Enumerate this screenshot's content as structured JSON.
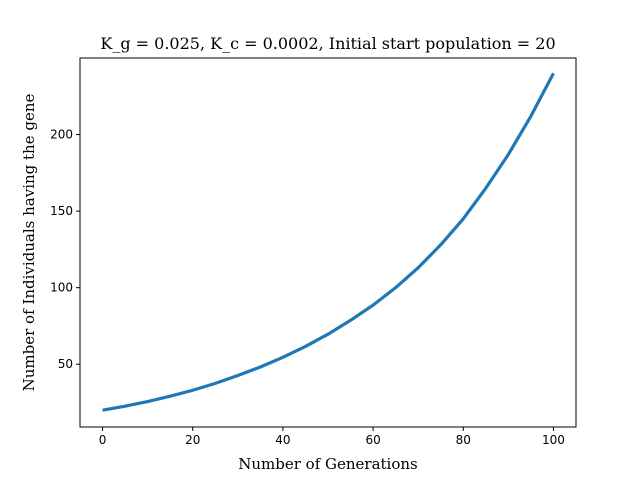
{
  "chart_data": {
    "type": "line",
    "title": "K_g = 0.025, K_c = 0.0002, Initial start population = 20",
    "xlabel": "Number of Generations",
    "ylabel": "Number of Individuals having the gene",
    "xlim": [
      -5,
      105
    ],
    "ylim": [
      9,
      250
    ],
    "x_ticks": [
      0,
      20,
      40,
      60,
      80,
      100
    ],
    "y_ticks": [
      50,
      100,
      150,
      200
    ],
    "grid": false,
    "line_color": "#1f77b4",
    "series": [
      {
        "x": [
          0,
          5,
          10,
          15,
          20,
          25,
          30,
          35,
          40,
          45,
          50,
          55,
          60,
          65,
          70,
          75,
          80,
          85,
          90,
          95,
          100
        ],
        "y": [
          20,
          22.6,
          25.6,
          29.1,
          33,
          37.5,
          42.6,
          48.2,
          54.5,
          61.6,
          69.6,
          78.7,
          88.6,
          100,
          113,
          128,
          145,
          165,
          187,
          212,
          240
        ]
      }
    ]
  }
}
